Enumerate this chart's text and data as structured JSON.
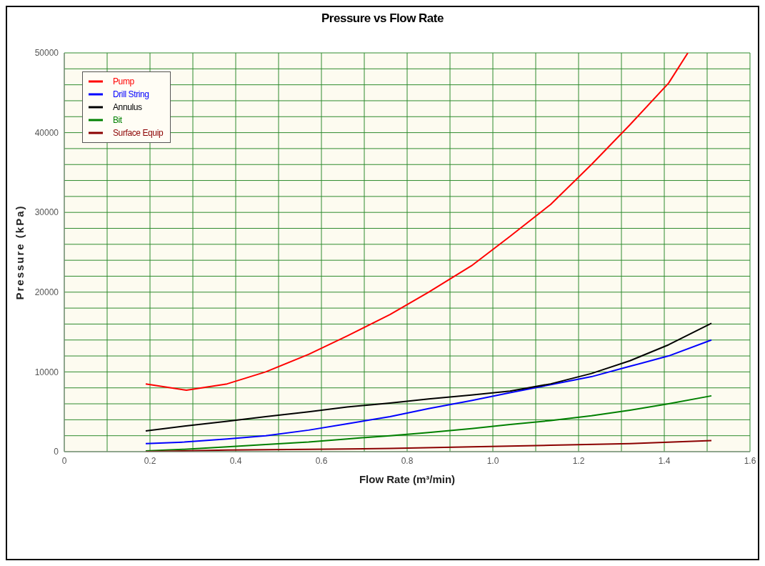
{
  "chart_data": {
    "type": "line",
    "title": "Pressure vs Flow Rate",
    "xlabel": "Flow Rate (m³/min)",
    "ylabel": "Pressure (kPa)",
    "xlim": [
      0,
      1.6
    ],
    "ylim": [
      0,
      50000
    ],
    "xticks": [
      0,
      {
        "value": 0.1,
        "label": null
      },
      0.2,
      {
        "value": 0.3,
        "label": null
      },
      0.4,
      {
        "value": 0.5,
        "label": null
      },
      0.6,
      {
        "value": 0.7,
        "label": null
      },
      0.8,
      {
        "value": 0.9,
        "label": null
      },
      {
        "value": 1,
        "label": "1.0"
      },
      {
        "value": 1.1,
        "label": null
      },
      1.2,
      {
        "value": 1.3,
        "label": null
      },
      1.4,
      {
        "value": 1.5,
        "label": null
      },
      1.6
    ],
    "yticks": [
      0,
      {
        "value": 2000,
        "label": null
      },
      {
        "value": 4000,
        "label": null
      },
      {
        "value": 6000,
        "label": null
      },
      {
        "value": 8000,
        "label": null
      },
      10000,
      {
        "value": 12000,
        "label": null
      },
      {
        "value": 14000,
        "label": null
      },
      {
        "value": 16000,
        "label": null
      },
      {
        "value": 18000,
        "label": null
      },
      20000,
      {
        "value": 22000,
        "label": null
      },
      {
        "value": 24000,
        "label": null
      },
      {
        "value": 26000,
        "label": null
      },
      {
        "value": 28000,
        "label": null
      },
      30000,
      {
        "value": 32000,
        "label": null
      },
      {
        "value": 34000,
        "label": null
      },
      {
        "value": 36000,
        "label": null
      },
      {
        "value": 38000,
        "label": null
      },
      40000,
      {
        "value": 42000,
        "label": null
      },
      {
        "value": 44000,
        "label": null
      },
      {
        "value": 46000,
        "label": null
      },
      {
        "value": 48000,
        "label": null
      },
      50000
    ],
    "grid": true,
    "legend": "top left",
    "marker": "none",
    "line_style": "solid",
    "series": [
      {
        "name": "Pump",
        "color": "#ff0000",
        "x": [
          0.19,
          0.285,
          0.38,
          0.47,
          0.57,
          0.66,
          0.76,
          0.85,
          0.95,
          1.04,
          1.135,
          1.23,
          1.32,
          1.41,
          1.455
        ],
        "values": [
          8500,
          7700,
          8500,
          10000,
          12200,
          14500,
          17200,
          20000,
          23300,
          27000,
          31000,
          36000,
          41000,
          46200,
          50000
        ]
      },
      {
        "name": "Drill String",
        "color": "#0000ff",
        "x": [
          0.19,
          0.28,
          0.38,
          0.47,
          0.57,
          0.66,
          0.76,
          0.85,
          0.95,
          1.04,
          1.135,
          1.23,
          1.32,
          1.41,
          1.51
        ],
        "values": [
          1000,
          1200,
          1600,
          2000,
          2700,
          3500,
          4400,
          5400,
          6400,
          7400,
          8400,
          9400,
          10700,
          12000,
          14000
        ]
      },
      {
        "name": "Annulus",
        "color": "#000000",
        "x": [
          0.19,
          0.28,
          0.38,
          0.47,
          0.57,
          0.66,
          0.76,
          0.85,
          0.95,
          1.04,
          1.135,
          1.23,
          1.32,
          1.41,
          1.51
        ],
        "values": [
          2600,
          3200,
          3800,
          4400,
          5000,
          5600,
          6100,
          6600,
          7100,
          7600,
          8500,
          9800,
          11400,
          13400,
          16100
        ]
      },
      {
        "name": "Bit",
        "color": "#008000",
        "x": [
          0.19,
          0.28,
          0.38,
          0.47,
          0.57,
          0.66,
          0.76,
          0.85,
          0.95,
          1.04,
          1.135,
          1.23,
          1.32,
          1.41,
          1.51
        ],
        "values": [
          100,
          300,
          600,
          900,
          1200,
          1600,
          2000,
          2400,
          2900,
          3400,
          3900,
          4500,
          5200,
          6000,
          7000
        ]
      },
      {
        "name": "Surface Equip",
        "color": "#8b0000",
        "x": [
          0.19,
          0.38,
          0.57,
          0.76,
          0.95,
          1.135,
          1.32,
          1.51
        ],
        "values": [
          0,
          200,
          300,
          400,
          600,
          800,
          1000,
          1400
        ]
      }
    ]
  }
}
